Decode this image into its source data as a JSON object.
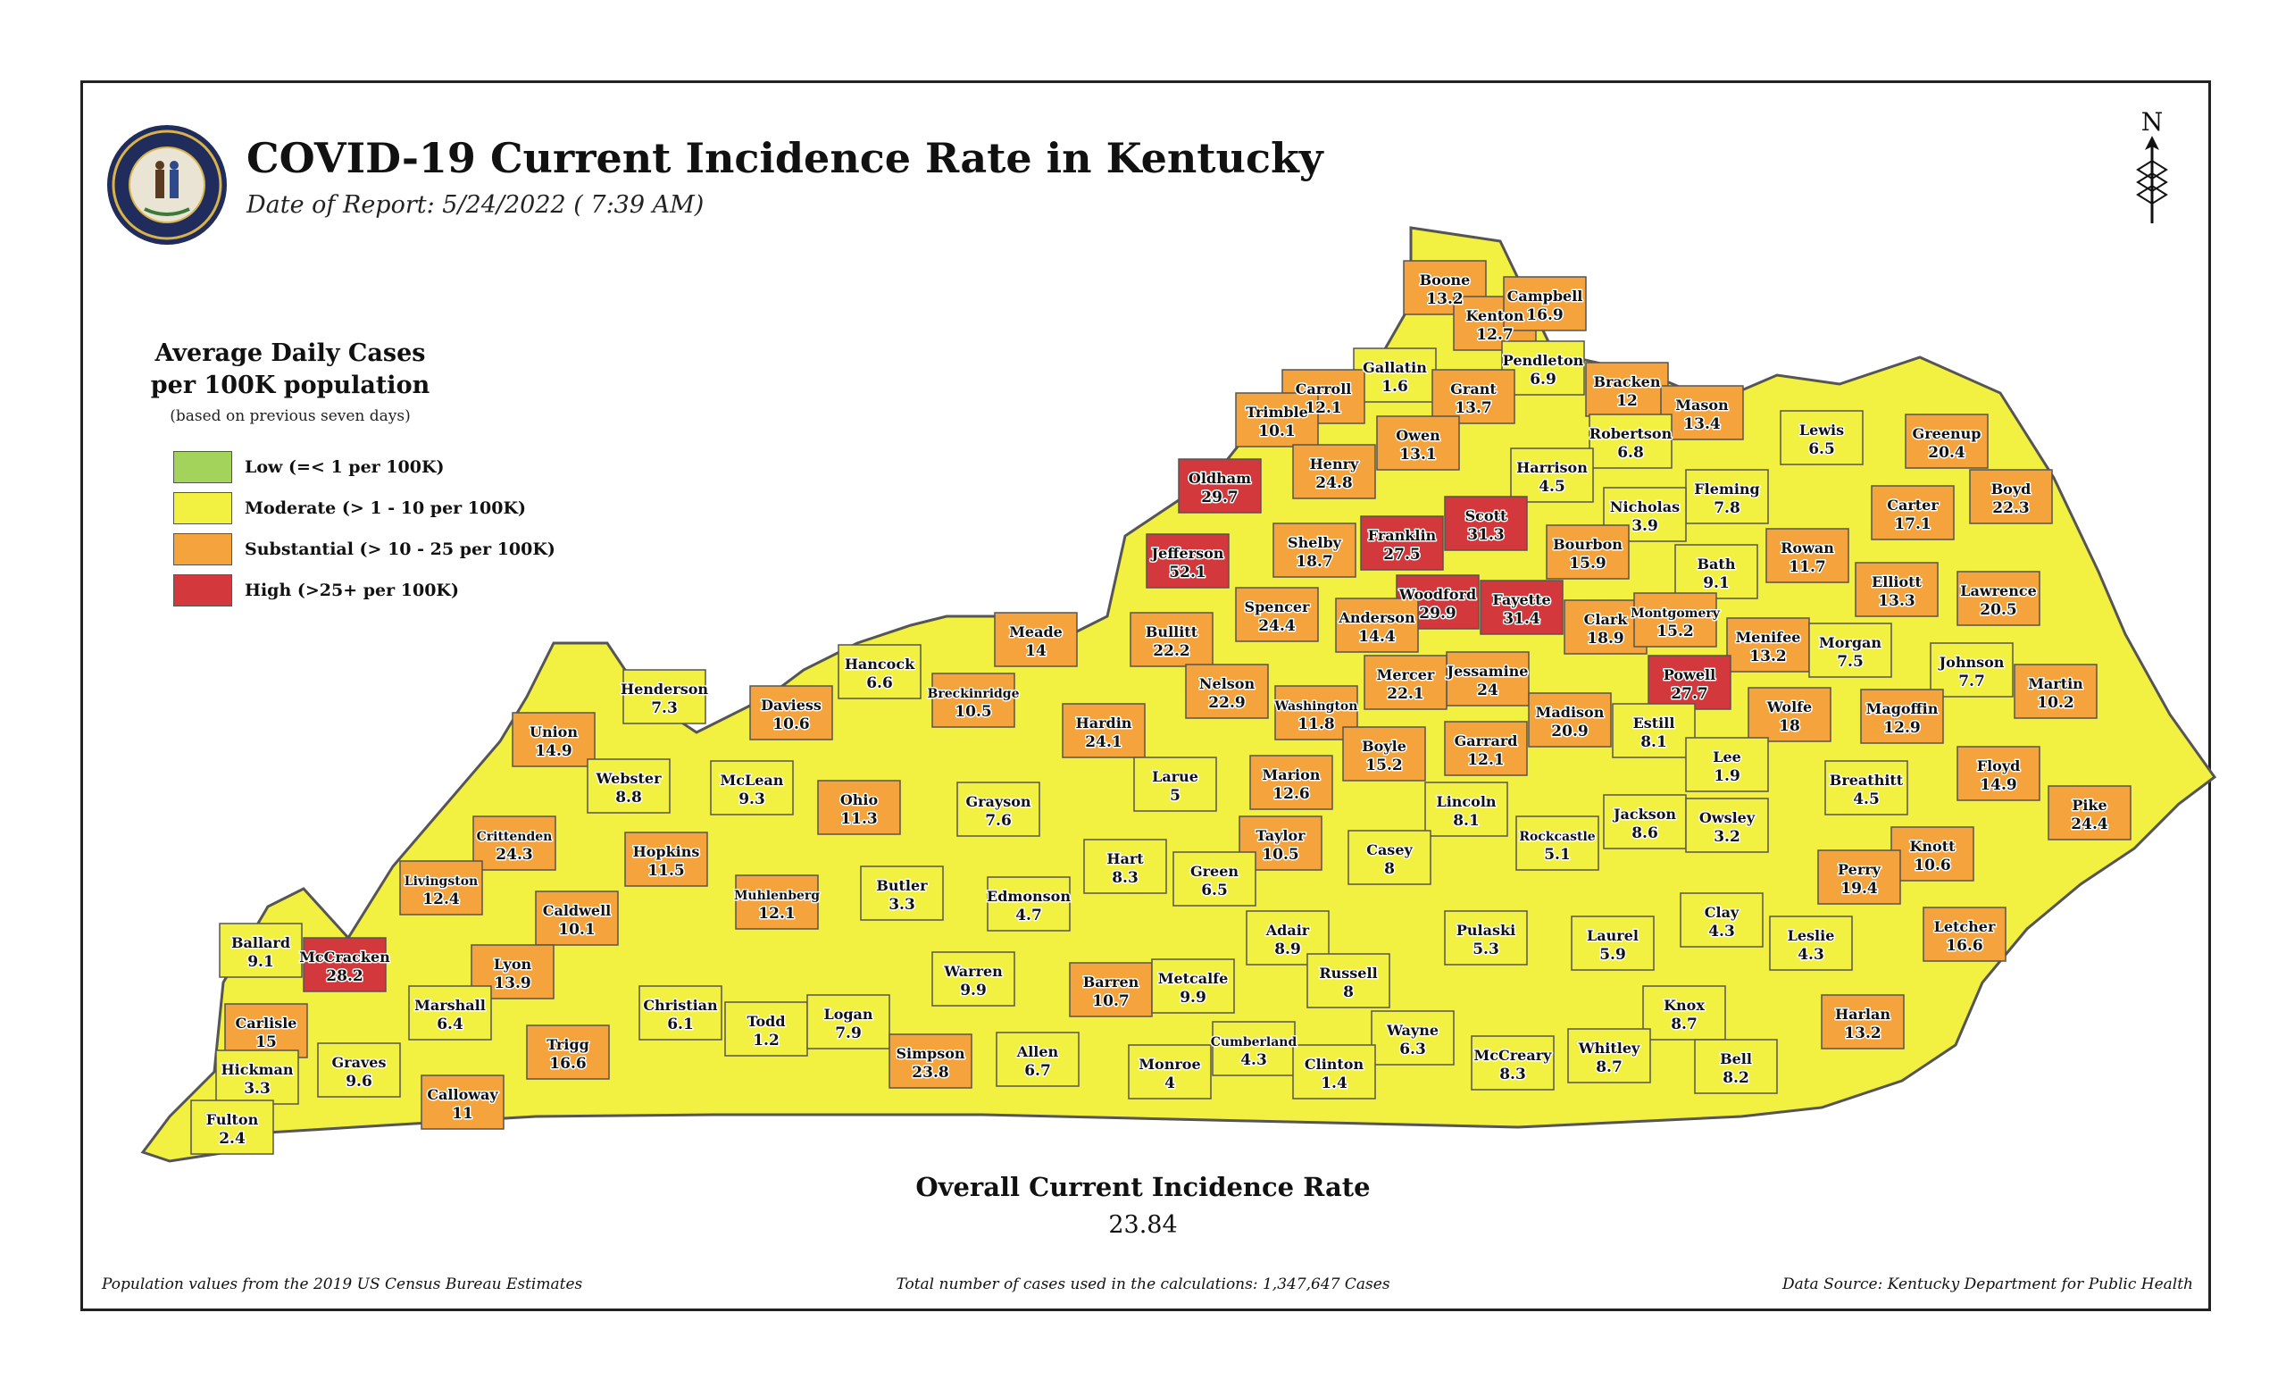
{
  "header": {
    "title": "COVID-19 Current Incidence Rate in Kentucky",
    "date_of_report": "Date of Report: 5/24/2022 ( 7:39 AM)"
  },
  "north_label": "N",
  "legend": {
    "title_line1": "Average Daily Cases",
    "title_line2": "per 100K population",
    "note": "(based on previous seven days)",
    "items": [
      {
        "label": "Low (=< 1 per 100K)",
        "color": "#a4d35c"
      },
      {
        "label": "Moderate (> 1 - 10 per 100K)",
        "color": "#f2f040"
      },
      {
        "label": "Substantial (> 10 - 25 per 100K)",
        "color": "#f5a33c"
      },
      {
        "label": "High (>25+ per 100K)",
        "color": "#d2383c"
      }
    ]
  },
  "colors": {
    "low": "#a4d35c",
    "moderate": "#f2f040",
    "substantial": "#f5a33c",
    "high": "#d2383c",
    "border": "#555555"
  },
  "counties": [
    {
      "name": "Boone",
      "rate": "13.2"
    },
    {
      "name": "Kenton",
      "rate": "12.7"
    },
    {
      "name": "Campbell",
      "rate": "16.9"
    },
    {
      "name": "Gallatin",
      "rate": "1.6"
    },
    {
      "name": "Pendleton",
      "rate": "6.9"
    },
    {
      "name": "Carroll",
      "rate": "12.1"
    },
    {
      "name": "Grant",
      "rate": "13.7"
    },
    {
      "name": "Bracken",
      "rate": "12"
    },
    {
      "name": "Mason",
      "rate": "13.4"
    },
    {
      "name": "Trimble",
      "rate": "10.1"
    },
    {
      "name": "Owen",
      "rate": "13.1"
    },
    {
      "name": "Robertson",
      "rate": "6.8"
    },
    {
      "name": "Lewis",
      "rate": "6.5"
    },
    {
      "name": "Greenup",
      "rate": "20.4"
    },
    {
      "name": "Oldham",
      "rate": "29.7"
    },
    {
      "name": "Henry",
      "rate": "24.8"
    },
    {
      "name": "Harrison",
      "rate": "4.5"
    },
    {
      "name": "Fleming",
      "rate": "7.8"
    },
    {
      "name": "Boyd",
      "rate": "22.3"
    },
    {
      "name": "Scott",
      "rate": "31.3"
    },
    {
      "name": "Nicholas",
      "rate": "3.9"
    },
    {
      "name": "Carter",
      "rate": "17.1"
    },
    {
      "name": "Jefferson",
      "rate": "52.1"
    },
    {
      "name": "Shelby",
      "rate": "18.7"
    },
    {
      "name": "Franklin",
      "rate": "27.5"
    },
    {
      "name": "Bourbon",
      "rate": "15.9"
    },
    {
      "name": "Rowan",
      "rate": "11.7"
    },
    {
      "name": "Bath",
      "rate": "9.1"
    },
    {
      "name": "Elliott",
      "rate": "13.3"
    },
    {
      "name": "Lawrence",
      "rate": "20.5"
    },
    {
      "name": "Woodford",
      "rate": "29.9"
    },
    {
      "name": "Fayette",
      "rate": "31.4"
    },
    {
      "name": "Spencer",
      "rate": "24.4"
    },
    {
      "name": "Anderson",
      "rate": "14.4"
    },
    {
      "name": "Clark",
      "rate": "18.9"
    },
    {
      "name": "Montgomery",
      "rate": "15.2"
    },
    {
      "name": "Meade",
      "rate": "14"
    },
    {
      "name": "Bullitt",
      "rate": "22.2"
    },
    {
      "name": "Menifee",
      "rate": "13.2"
    },
    {
      "name": "Morgan",
      "rate": "7.5"
    },
    {
      "name": "Johnson",
      "rate": "7.7"
    },
    {
      "name": "Martin",
      "rate": "10.2"
    },
    {
      "name": "Hancock",
      "rate": "6.6"
    },
    {
      "name": "Jessamine",
      "rate": "24"
    },
    {
      "name": "Powell",
      "rate": "27.7"
    },
    {
      "name": "Henderson",
      "rate": "7.3"
    },
    {
      "name": "Daviess",
      "rate": "10.6"
    },
    {
      "name": "Breckinridge",
      "rate": "10.5"
    },
    {
      "name": "Mercer",
      "rate": "22.1"
    },
    {
      "name": "Nelson",
      "rate": "22.9"
    },
    {
      "name": "Washington",
      "rate": "11.8"
    },
    {
      "name": "Madison",
      "rate": "20.9"
    },
    {
      "name": "Wolfe",
      "rate": "18"
    },
    {
      "name": "Magoffin",
      "rate": "12.9"
    },
    {
      "name": "Estill",
      "rate": "8.1"
    },
    {
      "name": "Hardin",
      "rate": "24.1"
    },
    {
      "name": "Union",
      "rate": "14.9"
    },
    {
      "name": "Boyle",
      "rate": "15.2"
    },
    {
      "name": "Garrard",
      "rate": "12.1"
    },
    {
      "name": "Lee",
      "rate": "1.9"
    },
    {
      "name": "Breathitt",
      "rate": "4.5"
    },
    {
      "name": "Floyd",
      "rate": "14.9"
    },
    {
      "name": "Webster",
      "rate": "8.8"
    },
    {
      "name": "McLean",
      "rate": "9.3"
    },
    {
      "name": "Larue",
      "rate": "5"
    },
    {
      "name": "Marion",
      "rate": "12.6"
    },
    {
      "name": "Ohio",
      "rate": "11.3"
    },
    {
      "name": "Grayson",
      "rate": "7.6"
    },
    {
      "name": "Lincoln",
      "rate": "8.1"
    },
    {
      "name": "Jackson",
      "rate": "8.6"
    },
    {
      "name": "Owsley",
      "rate": "3.2"
    },
    {
      "name": "Pike",
      "rate": "24.4"
    },
    {
      "name": "Crittenden",
      "rate": "24.3"
    },
    {
      "name": "Rockcastle",
      "rate": "5.1"
    },
    {
      "name": "Knott",
      "rate": "10.6"
    },
    {
      "name": "Taylor",
      "rate": "10.5"
    },
    {
      "name": "Casey",
      "rate": "8"
    },
    {
      "name": "Hopkins",
      "rate": "11.5"
    },
    {
      "name": "Hart",
      "rate": "8.3"
    },
    {
      "name": "Perry",
      "rate": "19.4"
    },
    {
      "name": "Livingston",
      "rate": "12.4"
    },
    {
      "name": "Muhlenberg",
      "rate": "12.1"
    },
    {
      "name": "Green",
      "rate": "6.5"
    },
    {
      "name": "Butler",
      "rate": "3.3"
    },
    {
      "name": "Caldwell",
      "rate": "10.1"
    },
    {
      "name": "Edmonson",
      "rate": "4.7"
    },
    {
      "name": "Clay",
      "rate": "4.3"
    },
    {
      "name": "Ballard",
      "rate": "9.1"
    },
    {
      "name": "McCracken",
      "rate": "28.2"
    },
    {
      "name": "Adair",
      "rate": "8.9"
    },
    {
      "name": "Pulaski",
      "rate": "5.3"
    },
    {
      "name": "Laurel",
      "rate": "5.9"
    },
    {
      "name": "Leslie",
      "rate": "4.3"
    },
    {
      "name": "Letcher",
      "rate": "16.6"
    },
    {
      "name": "Lyon",
      "rate": "13.9"
    },
    {
      "name": "Warren",
      "rate": "9.9"
    },
    {
      "name": "Russell",
      "rate": "8"
    },
    {
      "name": "Marshall",
      "rate": "6.4"
    },
    {
      "name": "Christian",
      "rate": "6.1"
    },
    {
      "name": "Barren",
      "rate": "10.7"
    },
    {
      "name": "Metcalfe",
      "rate": "9.9"
    },
    {
      "name": "Knox",
      "rate": "8.7"
    },
    {
      "name": "Todd",
      "rate": "1.2"
    },
    {
      "name": "Logan",
      "rate": "7.9"
    },
    {
      "name": "Carlisle",
      "rate": "15"
    },
    {
      "name": "Harlan",
      "rate": "13.2"
    },
    {
      "name": "Trigg",
      "rate": "16.6"
    },
    {
      "name": "Wayne",
      "rate": "6.3"
    },
    {
      "name": "Cumberland",
      "rate": "4.3"
    },
    {
      "name": "Whitley",
      "rate": "8.7"
    },
    {
      "name": "Graves",
      "rate": "9.6"
    },
    {
      "name": "Allen",
      "rate": "6.7"
    },
    {
      "name": "Simpson",
      "rate": "23.8"
    },
    {
      "name": "Hickman",
      "rate": "3.3"
    },
    {
      "name": "Monroe",
      "rate": "4"
    },
    {
      "name": "Clinton",
      "rate": "1.4"
    },
    {
      "name": "McCreary",
      "rate": "8.3"
    },
    {
      "name": "Bell",
      "rate": "8.2"
    },
    {
      "name": "Calloway",
      "rate": "11"
    },
    {
      "name": "Fulton",
      "rate": "2.4"
    }
  ],
  "overall": {
    "title": "Overall Current Incidence Rate",
    "value": "23.84"
  },
  "footer": {
    "left": "Population values from the 2019 US Census Bureau Estimates",
    "middle": "Total number of cases used in the calculations: 1,347,647 Cases",
    "right": "Data Source: Kentucky Department for Public Health"
  }
}
